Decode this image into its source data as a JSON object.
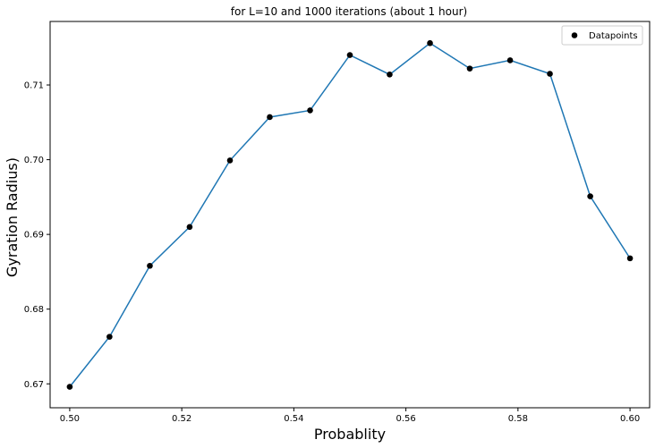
{
  "chart_data": {
    "type": "line",
    "title": "for L=10 and 1000 iterations (about 1 hour)",
    "xlabel": "Probablity",
    "ylabel": "Gyration Radius)",
    "xlim": [
      0.4965,
      0.6035
    ],
    "ylim": [
      0.6668,
      0.7185
    ],
    "xticks": [
      0.5,
      0.52,
      0.54,
      0.56,
      0.58,
      0.6
    ],
    "xtick_labels": [
      "0.50",
      "0.52",
      "0.54",
      "0.56",
      "0.58",
      "0.60"
    ],
    "yticks": [
      0.67,
      0.68,
      0.69,
      0.7,
      0.71
    ],
    "ytick_labels": [
      "0.67",
      "0.68",
      "0.69",
      "0.70",
      "0.71"
    ],
    "grid": false,
    "legend_position": "top-right",
    "legend": [
      "Datapoints"
    ],
    "x": [
      0.5,
      0.5071,
      0.5143,
      0.5214,
      0.5286,
      0.5357,
      0.5429,
      0.55,
      0.5571,
      0.5643,
      0.5714,
      0.5786,
      0.5857,
      0.5929,
      0.6
    ],
    "series": [
      {
        "name": "Datapoints",
        "values": [
          0.6696,
          0.6763,
          0.6858,
          0.691,
          0.6999,
          0.7057,
          0.7066,
          0.714,
          0.7114,
          0.7156,
          0.7122,
          0.7133,
          0.7115,
          0.6951,
          0.6868
        ],
        "line_color": "#1f77b4",
        "marker_color": "#000000"
      }
    ]
  }
}
